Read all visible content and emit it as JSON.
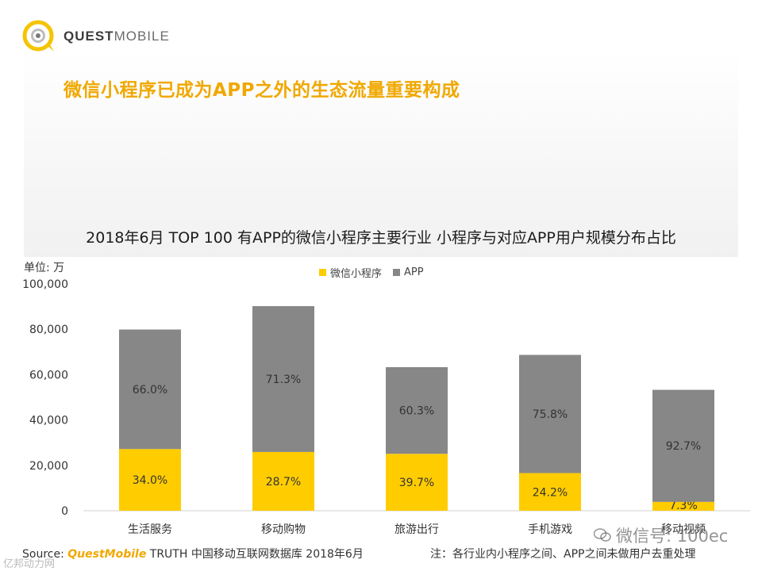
{
  "logo": {
    "brand_bold": "QUEST",
    "brand_light": "MOBILE"
  },
  "page_title": "微信小程序已成为APP之外的生态流量重要构成",
  "chart_data": {
    "type": "bar",
    "stacked": true,
    "title": "2018年6月 TOP 100 有APP的微信小程序主要行业 小程序与对应APP用户规模分布占比",
    "unit_label": "单位: 万",
    "categories": [
      "生活服务",
      "移动购物",
      "旅游出行",
      "手机游戏",
      "移动视频"
    ],
    "series": [
      {
        "name": "微信小程序",
        "color": "#ffcc00",
        "values": [
          27200,
          25900,
          25100,
          16600,
          3900
        ],
        "labels": [
          "34.0%",
          "28.7%",
          "39.7%",
          "24.2%",
          "7.3%"
        ]
      },
      {
        "name": "APP",
        "color": "#878787",
        "values": [
          52700,
          64300,
          38200,
          52100,
          49400
        ],
        "labels": [
          "66.0%",
          "71.3%",
          "60.3%",
          "75.8%",
          "92.7%"
        ]
      }
    ],
    "ylim": [
      0,
      100000
    ],
    "yticks": [
      "0",
      "20,000",
      "40,000",
      "60,000",
      "80,000",
      "100,000"
    ],
    "ytick_values": [
      0,
      20000,
      40000,
      60000,
      80000,
      100000
    ],
    "legend_position": "top-center",
    "grid": false
  },
  "footer": {
    "source_prefix": "Source: ",
    "source_brand": "QuestMobile",
    "source_rest": " TRUTH 中国移动互联网数据库 2018年6月",
    "note": "注：各行业内小程序之间、APP之间未做用户去重处理"
  },
  "watermarks": {
    "right": "微信号: 100ec",
    "left": "亿邦动力网"
  }
}
